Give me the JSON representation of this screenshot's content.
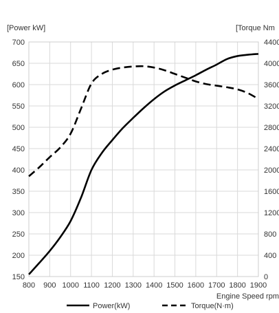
{
  "chart_data": {
    "type": "line",
    "ylabel_left": "[Power kW]",
    "ylabel_right": "[Torque Nm",
    "xlabel": "Engine Speed rpm",
    "xlim": [
      800,
      1900
    ],
    "ylim_left": [
      150,
      700
    ],
    "ylim_right": [
      0,
      4400
    ],
    "x_ticks": [
      800,
      900,
      1000,
      1100,
      1200,
      1300,
      1400,
      1500,
      1600,
      1700,
      1800,
      1900
    ],
    "y_left_ticks": [
      150,
      200,
      250,
      300,
      350,
      400,
      450,
      500,
      550,
      600,
      650,
      700
    ],
    "y_right_ticks": [
      0,
      400,
      800,
      1200,
      1600,
      2000,
      2400,
      2800,
      3200,
      3600,
      4000,
      4400
    ],
    "y_right_tick_labels": [
      "0",
      "400",
      "800",
      "1200",
      "1600",
      "2000",
      "2400",
      "2800",
      "3200",
      "3600",
      "4000",
      "4400"
    ],
    "grid": true,
    "legend_position": "bottom",
    "series": [
      {
        "name": "Power(kW)",
        "axis": "left",
        "style": "solid",
        "color": "#000000",
        "x": [
          800,
          850,
          900,
          950,
          1000,
          1050,
          1100,
          1150,
          1200,
          1250,
          1300,
          1350,
          1400,
          1450,
          1500,
          1550,
          1600,
          1650,
          1700,
          1750,
          1800,
          1850,
          1900
        ],
        "y": [
          155,
          182,
          210,
          242,
          280,
          335,
          400,
          440,
          470,
          498,
          522,
          545,
          566,
          584,
          598,
          610,
          622,
          635,
          647,
          660,
          667,
          670,
          672
        ]
      },
      {
        "name": "Torque(N·m)",
        "axis": "right",
        "style": "dashed",
        "color": "#000000",
        "x": [
          800,
          850,
          900,
          950,
          1000,
          1050,
          1100,
          1150,
          1200,
          1250,
          1300,
          1350,
          1400,
          1450,
          1500,
          1550,
          1600,
          1650,
          1700,
          1750,
          1800,
          1850,
          1900
        ],
        "y": [
          1880,
          2050,
          2240,
          2420,
          2680,
          3150,
          3620,
          3800,
          3880,
          3920,
          3940,
          3945,
          3920,
          3870,
          3800,
          3730,
          3660,
          3610,
          3580,
          3550,
          3510,
          3440,
          3330
        ]
      }
    ]
  }
}
